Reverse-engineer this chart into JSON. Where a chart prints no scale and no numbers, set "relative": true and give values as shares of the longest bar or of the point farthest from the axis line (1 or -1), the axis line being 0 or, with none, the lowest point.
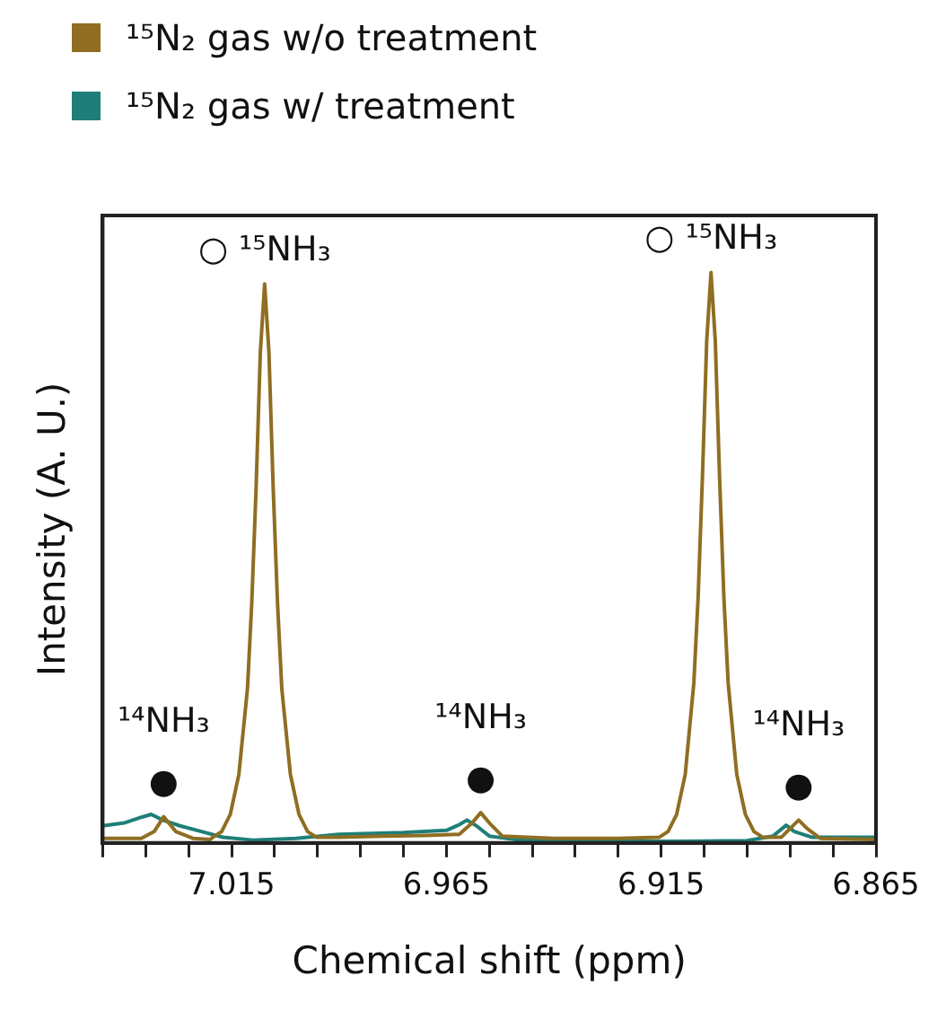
{
  "chart_data": {
    "type": "line",
    "relative": true,
    "xlabel": "Chemical shift (ppm)",
    "ylabel": "Intensity (A. U.)",
    "legend": "top left",
    "grid": false,
    "marker": "none",
    "line_style": "solid",
    "tick_labels": "x",
    "xlim": [
      7.045,
      6.865
    ],
    "xticks": [
      {
        "value": 7.045,
        "label": null
      },
      {
        "value": 7.035,
        "label": null
      },
      {
        "value": 7.025,
        "label": null
      },
      7.015,
      {
        "value": 7.005,
        "label": null
      },
      {
        "value": 6.995,
        "label": null
      },
      {
        "value": 6.985,
        "label": null
      },
      {
        "value": 6.975,
        "label": null
      },
      6.965,
      {
        "value": 6.955,
        "label": null
      },
      {
        "value": 6.945,
        "label": null
      },
      {
        "value": 6.935,
        "label": null
      },
      {
        "value": 6.925,
        "label": null
      },
      6.915,
      {
        "value": 6.905,
        "label": null
      },
      {
        "value": 6.895,
        "label": null
      },
      {
        "value": 6.885,
        "label": null
      },
      {
        "value": 6.875,
        "label": null
      },
      6.865
    ],
    "series": [
      {
        "name": "¹⁵N₂ gas w/o treatment",
        "color": "#8f6e22",
        "x": [
          7.045,
          7.036,
          7.033,
          7.0308,
          7.028,
          7.024,
          7.02,
          7.0193,
          7.0173,
          7.0153,
          7.0133,
          7.0113,
          7.0103,
          7.0093,
          7.0083,
          7.0073,
          7.0063,
          7.0053,
          7.0043,
          7.0033,
          7.0013,
          6.9993,
          6.9973,
          6.9953,
          6.99,
          6.98,
          6.97,
          6.962,
          6.959,
          6.957,
          6.955,
          6.952,
          6.94,
          6.925,
          6.9154,
          6.9134,
          6.9114,
          6.9094,
          6.9074,
          6.9064,
          6.9054,
          6.9044,
          6.9034,
          6.9024,
          6.9014,
          6.9004,
          6.8994,
          6.8974,
          6.8954,
          6.8934,
          6.8914,
          6.887,
          6.885,
          6.883,
          6.881,
          6.878,
          6.865
        ],
        "values": [
          0.008,
          0.008,
          0.02,
          0.046,
          0.02,
          0.008,
          0.006,
          0.01,
          0.02,
          0.05,
          0.12,
          0.27,
          0.42,
          0.62,
          0.86,
          0.98,
          0.86,
          0.62,
          0.42,
          0.27,
          0.12,
          0.05,
          0.02,
          0.01,
          0.01,
          0.012,
          0.013,
          0.015,
          0.035,
          0.053,
          0.035,
          0.012,
          0.008,
          0.008,
          0.01,
          0.02,
          0.05,
          0.12,
          0.28,
          0.43,
          0.64,
          0.88,
          1,
          0.88,
          0.64,
          0.43,
          0.28,
          0.12,
          0.05,
          0.02,
          0.01,
          0.01,
          0.025,
          0.04,
          0.025,
          0.008,
          0.006
        ]
      },
      {
        "name": "¹⁵N₂ gas w/ treatment",
        "color": "#1e7f78",
        "x": [
          7.045,
          7.04,
          7.036,
          7.0337,
          7.031,
          7.027,
          7.022,
          7.017,
          7.01,
          7.0,
          6.99,
          6.975,
          6.965,
          6.962,
          6.9602,
          6.958,
          6.955,
          6.948,
          6.93,
          6.91,
          6.895,
          6.889,
          6.8859,
          6.884,
          6.88,
          6.865
        ],
        "values": [
          0.03,
          0.035,
          0.045,
          0.05,
          0.04,
          0.03,
          0.02,
          0.01,
          0.005,
          0.008,
          0.015,
          0.018,
          0.022,
          0.032,
          0.04,
          0.03,
          0.012,
          0.005,
          0.003,
          0.003,
          0.004,
          0.012,
          0.031,
          0.02,
          0.01,
          0.01
        ]
      }
    ],
    "annotations": [
      {
        "text": "○ ¹⁵NH₃",
        "x": 7.0073,
        "y": 0.98
      },
      {
        "text": "○ ¹⁵NH₃",
        "x": 6.9034,
        "y": 1
      },
      {
        "text": "●",
        "x": 7.0308,
        "y": 0.046
      },
      {
        "text": "¹⁴NH₃",
        "x": 7.0308,
        "y": 0.046
      },
      {
        "text": "●",
        "x": 6.957,
        "y": 0.053
      },
      {
        "text": "¹⁴NH₃",
        "x": 6.957,
        "y": 0.053
      },
      {
        "text": "●",
        "x": 6.883,
        "y": 0.04
      },
      {
        "text": "¹⁴NH₃",
        "x": 6.883,
        "y": 0.04
      }
    ]
  }
}
